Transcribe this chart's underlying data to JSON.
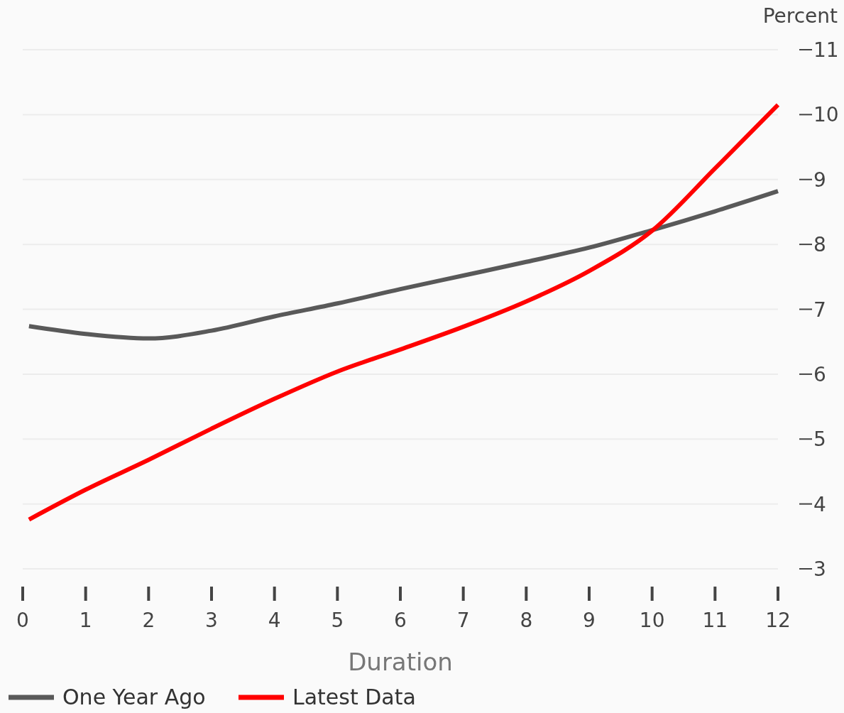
{
  "chart_data": {
    "type": "line",
    "xlabel": "Duration",
    "ylabel": "Percent",
    "xlim": [
      0,
      12
    ],
    "xticks": [
      0,
      1,
      2,
      3,
      4,
      5,
      6,
      7,
      8,
      9,
      10,
      11,
      12
    ],
    "ylim": [
      3,
      11
    ],
    "yticks": [
      3,
      4,
      5,
      6,
      7,
      8,
      9,
      10,
      11
    ],
    "grid": "y",
    "legend": "bottom left",
    "series": [
      {
        "name": "One Year Ago",
        "color": "#595959",
        "x": [
          0.1,
          1,
          2,
          3,
          4,
          5,
          6,
          7,
          8,
          9,
          10,
          11,
          12
        ],
        "values": [
          6.74,
          6.62,
          6.55,
          6.67,
          6.89,
          7.09,
          7.31,
          7.52,
          7.73,
          7.95,
          8.22,
          8.51,
          8.82
        ]
      },
      {
        "name": "Latest Data",
        "color": "#ff0000",
        "x": [
          0.1,
          1,
          2,
          3,
          4,
          5,
          6,
          7,
          8,
          9,
          10,
          11,
          12
        ],
        "values": [
          3.76,
          4.22,
          4.68,
          5.16,
          5.62,
          6.04,
          6.38,
          6.73,
          7.12,
          7.59,
          8.21,
          9.17,
          10.15
        ]
      }
    ]
  }
}
